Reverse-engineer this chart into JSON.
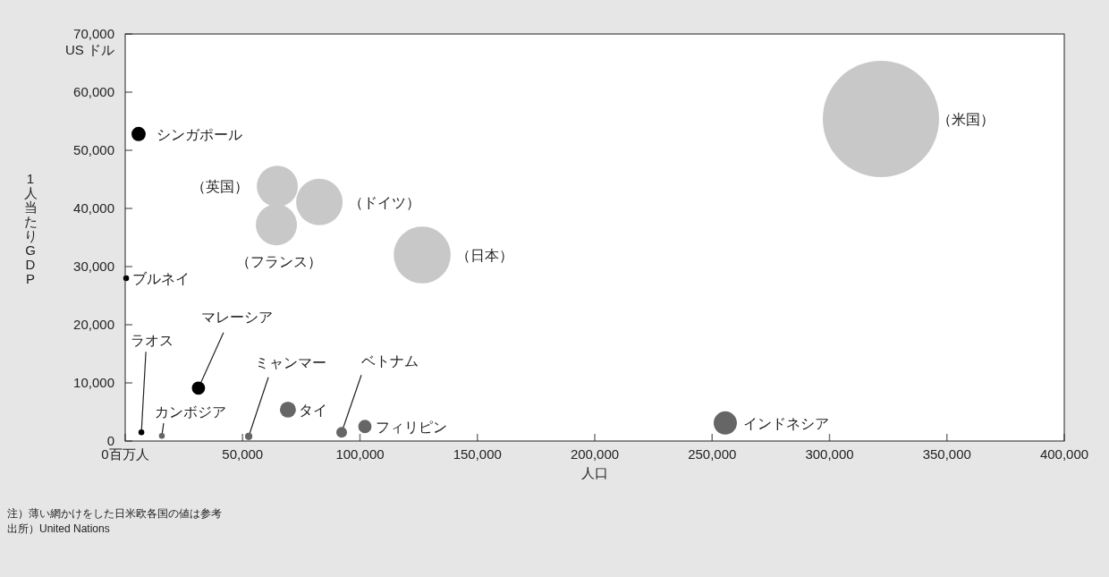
{
  "chart_data": {
    "type": "bubble",
    "xlabel": "人口",
    "ylabel": "1人当たりGDP",
    "xlim": [
      0,
      400000
    ],
    "ylim": [
      0,
      70000
    ],
    "xticks": [
      {
        "value": 0,
        "label": "0百万人"
      },
      {
        "value": 50000,
        "label": "50,000"
      },
      {
        "value": 100000,
        "label": "100,000"
      },
      {
        "value": 150000,
        "label": "150,000"
      },
      {
        "value": 200000,
        "label": "200,000"
      },
      {
        "value": 250000,
        "label": "250,000"
      },
      {
        "value": 300000,
        "label": "300,000"
      },
      {
        "value": 350000,
        "label": "350,000"
      },
      {
        "value": 400000,
        "label": "400,000"
      }
    ],
    "yticks": [
      {
        "value": 0,
        "label": "0"
      },
      {
        "value": 10000,
        "label": "10,000"
      },
      {
        "value": 20000,
        "label": "20,000"
      },
      {
        "value": 30000,
        "label": "30,000"
      },
      {
        "value": 40000,
        "label": "40,000"
      },
      {
        "value": 50000,
        "label": "50,000"
      },
      {
        "value": 60000,
        "label": "60,000"
      },
      {
        "value": 70000,
        "label": "70,000\nUS ドル"
      }
    ],
    "grid": false,
    "series": [
      {
        "name": "（米国）",
        "color": "#c8c8c8",
        "x": [
          321900
        ],
        "values": [
          55400
        ],
        "sizes": [
          1
        ]
      },
      {
        "name": "（日本）",
        "color": "#c8c8c8",
        "x": [
          126500
        ],
        "values": [
          32000
        ],
        "sizes": [
          0.24
        ]
      },
      {
        "name": "（ドイツ）",
        "color": "#c8c8c8",
        "x": [
          82700
        ],
        "values": [
          41100
        ],
        "sizes": [
          0.16
        ]
      },
      {
        "name": "（英国）",
        "color": "#c8c8c8",
        "x": [
          64800
        ],
        "values": [
          43800
        ],
        "sizes": [
          0.125
        ]
      },
      {
        "name": "（フランス）",
        "color": "#c8c8c8",
        "x": [
          64400
        ],
        "values": [
          37200
        ],
        "sizes": [
          0.125
        ]
      },
      {
        "name": "シンガポール",
        "color": "#000000",
        "x": [
          5700
        ],
        "values": [
          52800
        ],
        "sizes": [
          0.015
        ]
      },
      {
        "name": "ブルネイ",
        "color": "#000000",
        "x": [
          400
        ],
        "values": [
          28000
        ],
        "sizes": [
          0.0025
        ]
      },
      {
        "name": "マレーシア",
        "color": "#000000",
        "x": [
          31200
        ],
        "values": [
          9100
        ],
        "sizes": [
          0.013
        ]
      },
      {
        "name": "ラオス",
        "color": "#000000",
        "x": [
          6900
        ],
        "values": [
          1500
        ],
        "sizes": [
          0.0025
        ]
      },
      {
        "name": "カンボジア",
        "color": "#666666",
        "x": [
          15600
        ],
        "values": [
          900
        ],
        "sizes": [
          0.0025
        ]
      },
      {
        "name": "ミャンマー",
        "color": "#666666",
        "x": [
          52600
        ],
        "values": [
          800
        ],
        "sizes": [
          0.004
        ]
      },
      {
        "name": "タイ",
        "color": "#666666",
        "x": [
          69300
        ],
        "values": [
          5400
        ],
        "sizes": [
          0.019
        ]
      },
      {
        "name": "ベトナム",
        "color": "#666666",
        "x": [
          92200
        ],
        "values": [
          1500
        ],
        "sizes": [
          0.0085
        ]
      },
      {
        "name": "フィリピン",
        "color": "#666666",
        "x": [
          102100
        ],
        "values": [
          2500
        ],
        "sizes": [
          0.013
        ]
      },
      {
        "name": "インドネシア",
        "color": "#666666",
        "x": [
          255600
        ],
        "values": [
          3100
        ],
        "sizes": [
          0.04
        ]
      }
    ],
    "annotations": [
      "注）薄い網かけをした日米欧各国の値は参考",
      "出所）United Nations"
    ]
  }
}
